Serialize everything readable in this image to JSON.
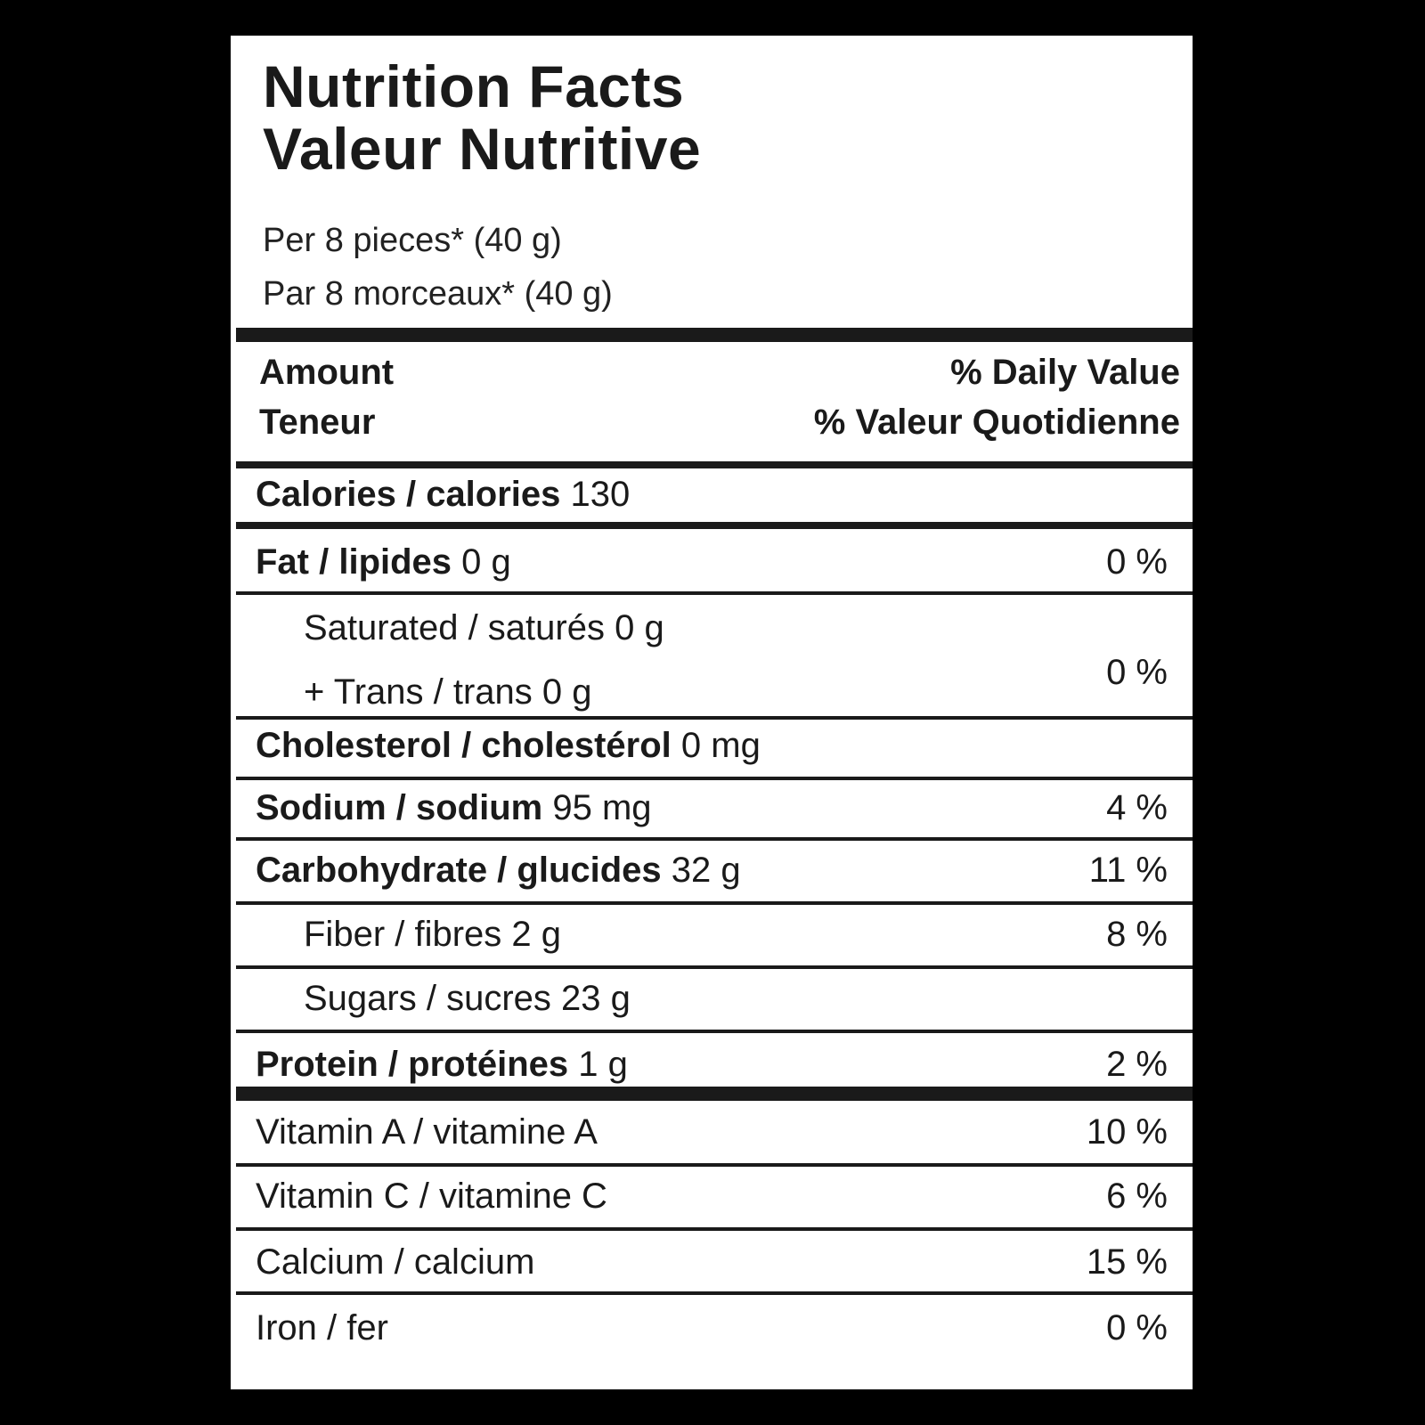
{
  "header": {
    "title_en": "Nutrition Facts",
    "title_fr": "Valeur Nutritive",
    "serving_en": "Per 8 pieces* (40 g)",
    "serving_fr": "Par 8 morceaux* (40 g)"
  },
  "columns": {
    "amount_en": "Amount",
    "amount_fr": "Teneur",
    "dv_en": "% Daily Value",
    "dv_fr": "% Valeur Quotidienne"
  },
  "calories": {
    "name": "Calories / calories",
    "amount": "130"
  },
  "fat": {
    "name": "Fat / lipides",
    "amount": "0 g",
    "dv": "0 %"
  },
  "saturated_trans": {
    "saturated": "Saturated / saturés 0 g",
    "trans": "+ Trans / trans 0 g",
    "dv": "0 %"
  },
  "cholesterol": {
    "name": "Cholesterol / cholestérol",
    "amount": "0 mg"
  },
  "sodium": {
    "name": "Sodium / sodium",
    "amount": "95 mg",
    "dv": "4  %"
  },
  "carbohydrate": {
    "name": "Carbohydrate / glucides",
    "amount": "32 g",
    "dv": "11 %"
  },
  "fiber": {
    "label": "Fiber / fibres 2 g",
    "dv": "8 %"
  },
  "sugars": {
    "label": "Sugars / sucres 23 g"
  },
  "protein": {
    "name": "Protein / protéines",
    "amount": "1 g",
    "dv": "2 %"
  },
  "vitamins": [
    {
      "label": "Vitamin A / vitamine A",
      "dv": "10 %"
    },
    {
      "label": "Vitamin C / vitamine C",
      "dv": "6 %"
    },
    {
      "label": "Calcium / calcium",
      "dv": "15 %"
    },
    {
      "label": "Iron / fer",
      "dv": "0 %"
    }
  ]
}
